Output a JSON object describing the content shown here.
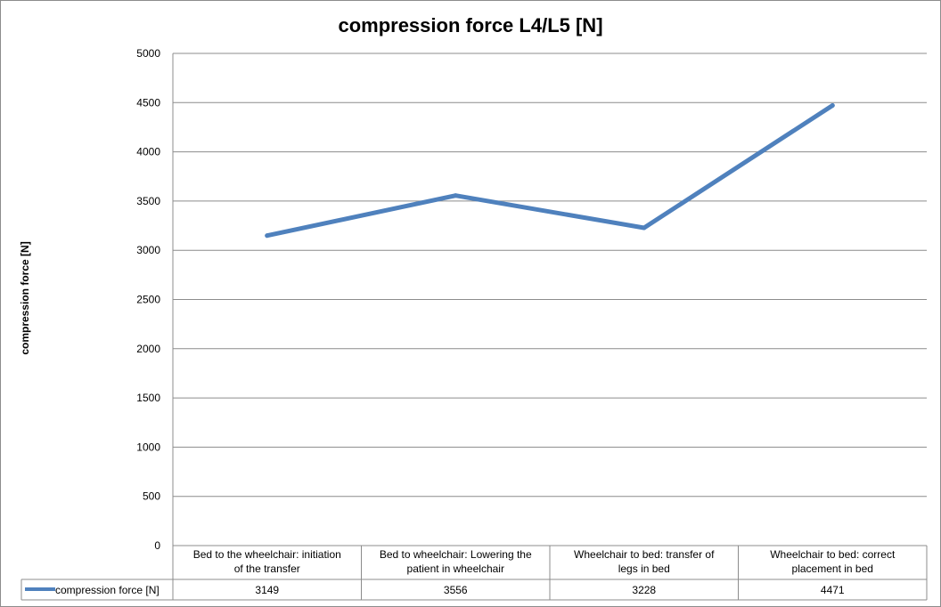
{
  "chart_data": {
    "type": "line",
    "title": "compression force L4/L5 [N]",
    "ylabel": "compression force [N]",
    "xlabel": "",
    "ylim": [
      0,
      5000
    ],
    "yticks": [
      "0",
      "500",
      "1000",
      "1500",
      "2000",
      "2500",
      "3000",
      "3500",
      "4000",
      "4500",
      "5000"
    ],
    "grid": true,
    "categories": [
      [
        "Bed to the wheelchair: initiation",
        "of the transfer"
      ],
      [
        "Bed to wheelchair: Lowering the",
        "patient in wheelchair"
      ],
      [
        "Wheelchair to bed: transfer of",
        "legs in bed"
      ],
      [
        "Wheelchair to bed: correct",
        "placement in bed"
      ]
    ],
    "series": [
      {
        "name": "compression force [N]",
        "values": [
          3149,
          3556,
          3228,
          4471
        ],
        "labels": [
          "3149",
          "3556",
          "3228",
          "4471"
        ],
        "color": "#4F81BD"
      }
    ],
    "legend": "data-table-left"
  }
}
